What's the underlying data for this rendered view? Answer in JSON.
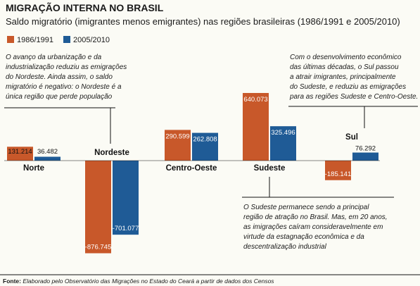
{
  "chart_data": {
    "type": "bar",
    "title": "MIGRAÇÃO INTERNA NO BRASIL",
    "subtitle": "Saldo migratório (imigrantes menos emigrantes) nas regiões brasileiras (1986/1991 e 2005/2010)",
    "categories": [
      "Norte",
      "Nordeste",
      "Centro-Oeste",
      "Sudeste",
      "Sul"
    ],
    "series": [
      {
        "name": "1986/1991",
        "color": "#c8582a",
        "values": [
          131214,
          -876745,
          290599,
          640073,
          -185141
        ],
        "labels": [
          "131.214",
          "-876.745",
          "290.599",
          "640.073",
          "-185.141"
        ]
      },
      {
        "name": "2005/2010",
        "color": "#1f5b96",
        "values": [
          36482,
          -701077,
          262808,
          325496,
          76292
        ],
        "labels": [
          "36.482",
          "-701.077",
          "262.808",
          "325.496",
          "76.292"
        ]
      }
    ],
    "annotations": [
      {
        "id": "nordeste",
        "lines": [
          "O avanço da urbanização e da",
          "industrialização reduziu as emigrações",
          "do Nordeste. Ainda assim, o saldo",
          "migratório é negativo: o Nordeste é a",
          "única região que perde população"
        ]
      },
      {
        "id": "sul",
        "lines": [
          "Com o desenvolvimento econômico",
          "das últimas décadas, o Sul passou",
          "a atrair imigrantes, principalmente",
          "do Sudeste, e reduziu as emigrações",
          "para as regiões Sudeste e Centro-Oeste."
        ]
      },
      {
        "id": "sudeste",
        "lines": [
          "O Sudeste permanece sendo a principal",
          "região de atração no Brasil. Mas, em 20 anos,",
          "as imigrações caíram consideravelmente em",
          "virtude da estagnação econômica e da",
          "descentralização industrial"
        ]
      }
    ],
    "source_label": "Fonte:",
    "source_text": "Elaborado pelo Observatório das Migrações no Estado do Ceará a partir de dados dos Censos"
  }
}
